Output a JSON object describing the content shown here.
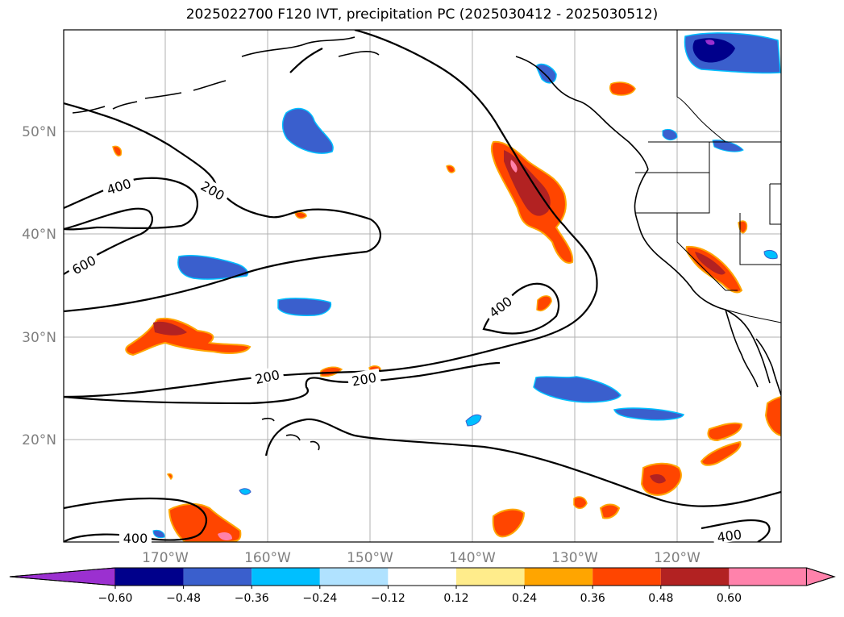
{
  "title": "2025022700 F120 IVT, precipitation PC (2025030412 - 2025030512)",
  "map": {
    "lat_labels": [
      "50°N",
      "40°N",
      "30°N",
      "20°N"
    ],
    "lon_labels": [
      "170°W",
      "160°W",
      "150°W",
      "140°W",
      "130°W",
      "120°W"
    ],
    "contour_labels": [
      "400",
      "200",
      "600",
      "400",
      "200",
      "200",
      "400",
      "400"
    ],
    "contour_levels": [
      200,
      400,
      600
    ]
  },
  "colorbar": {
    "ticks": [
      "−0.60",
      "−0.48",
      "−0.36",
      "−0.24",
      "−0.12",
      "0.12",
      "0.24",
      "0.36",
      "0.48",
      "0.60"
    ],
    "colors": [
      "#9b30d0",
      "#00008b",
      "#3a5fcd",
      "#00bfff",
      "#b0e2ff",
      "#ffffff",
      "#ffec8b",
      "#ffa500",
      "#ff4500",
      "#b22222",
      "#ff82ab"
    ]
  },
  "colors": {
    "neg_dark": "#00008b",
    "neg_mid": "#3a5fcd",
    "neg_light": "#00bfff",
    "pos_light": "#ffec8b",
    "pos_orange": "#ffa500",
    "pos_red": "#ff4500",
    "pos_dark": "#b22222",
    "pos_pink": "#ff82ab",
    "neg_purple": "#9b30d0"
  }
}
